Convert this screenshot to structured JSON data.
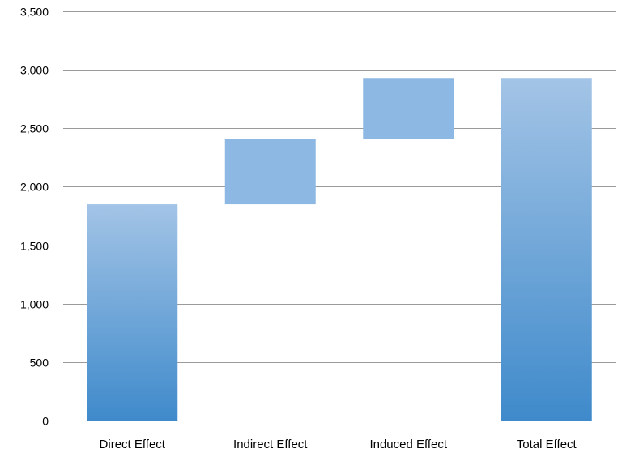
{
  "chart_data": {
    "type": "bar",
    "subtype": "waterfall",
    "title": "",
    "xlabel": "",
    "ylabel": "",
    "categories": [
      "Direct Effect",
      "Indirect Effect",
      "Induced Effect",
      "Total Effect"
    ],
    "bars": [
      {
        "category": "Direct Effect",
        "base": 0,
        "value": 1850,
        "top": 1850,
        "style": "gradient"
      },
      {
        "category": "Indirect Effect",
        "base": 1850,
        "value": 560,
        "top": 2410,
        "style": "flat"
      },
      {
        "category": "Induced Effect",
        "base": 2410,
        "value": 520,
        "top": 2930,
        "style": "flat"
      },
      {
        "category": "Total Effect",
        "base": 0,
        "value": 2930,
        "top": 2930,
        "style": "gradient"
      }
    ],
    "ylim": [
      0,
      3500
    ],
    "yticks": [
      0,
      500,
      1000,
      1500,
      2000,
      2500,
      3000,
      3500
    ],
    "ytick_labels": [
      "0",
      "500",
      "1,000",
      "1,500",
      "2,000",
      "2,500",
      "3,000",
      "3,500"
    ],
    "grid": true,
    "legend": "none",
    "colors": {
      "bar_top": "#a3c4e6",
      "bar_bottom": "#3f8acb",
      "bar_flat": "#8db8e3",
      "grid": "#9a9a9a"
    }
  }
}
